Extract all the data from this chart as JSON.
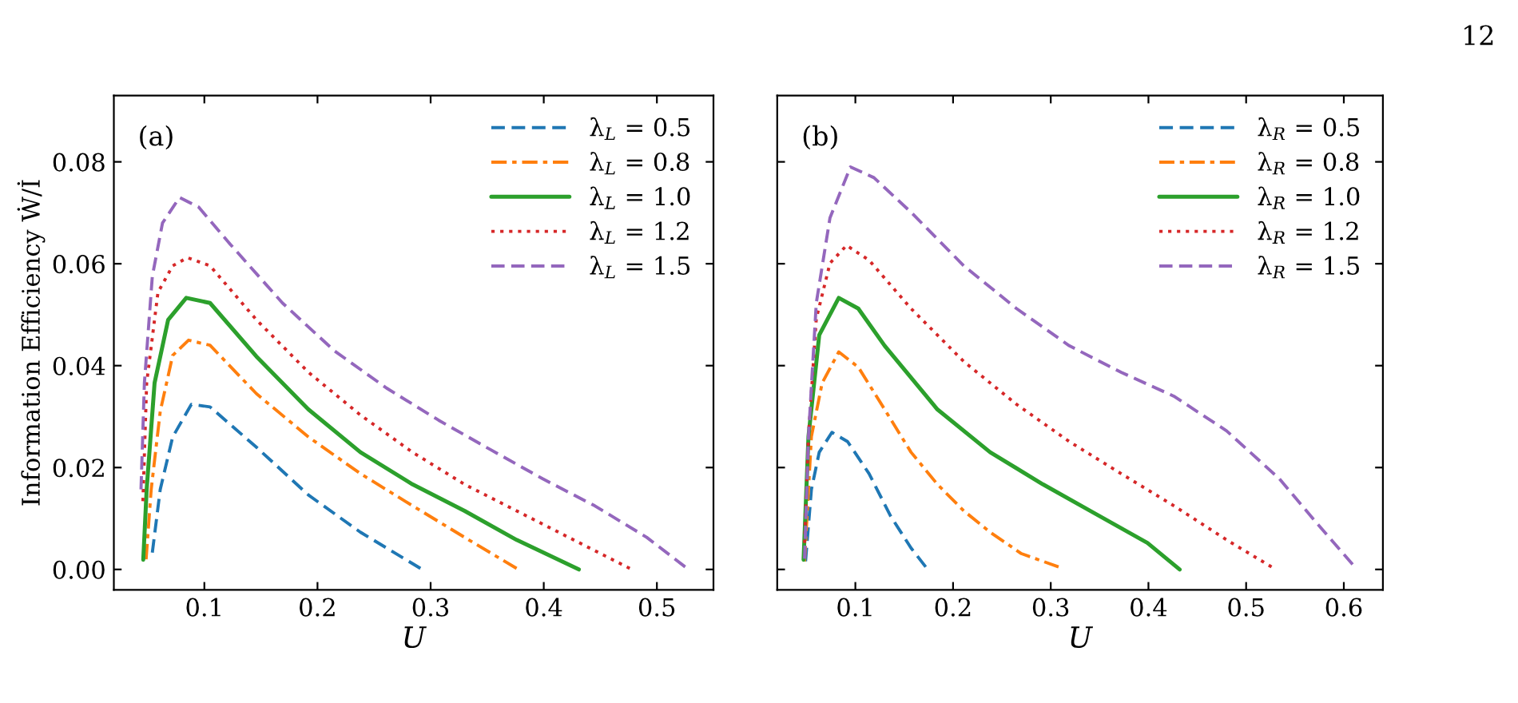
{
  "chart_data": [
    {
      "type": "line",
      "annotations": [
        "(a)",
        "12"
      ],
      "xlabel": "U",
      "ylabel": "Information Efficiency Ẇ/İ",
      "xlim": [
        0.02,
        0.55
      ],
      "ylim": [
        -0.004,
        0.093
      ],
      "xticks": [
        0.1,
        0.2,
        0.3,
        0.4,
        0.5
      ],
      "yticks": [
        {
          "value": 0,
          "label": "0.00"
        },
        {
          "value": 0.02,
          "label": "0.02"
        },
        {
          "value": 0.04,
          "label": "0.04"
        },
        {
          "value": 0.06,
          "label": "0.06"
        },
        {
          "value": 0.08,
          "label": "0.08"
        }
      ],
      "legend": "top right",
      "grid": false,
      "series": [
        {
          "name": "λ$_{L}$ = 0.5",
          "color": "#1f77b4",
          "line_style": "dashed",
          "x": [
            0.054,
            0.061,
            0.072,
            0.0885,
            0.105,
            0.146,
            0.192,
            0.238,
            0.291
          ],
          "values": [
            0.0033,
            0.0157,
            0.026,
            0.0324,
            0.0319,
            0.024,
            0.0146,
            0.0073,
            0.0002
          ]
        },
        {
          "name": "λ$_{L}$ = 0.8",
          "color": "#ff7f0e",
          "line_style": "dashdot",
          "x": [
            0.0485,
            0.053,
            0.061,
            0.072,
            0.086,
            0.105,
            0.146,
            0.192,
            0.238,
            0.284,
            0.33,
            0.376
          ],
          "values": [
            0.002,
            0.0157,
            0.031,
            0.042,
            0.045,
            0.044,
            0.0345,
            0.026,
            0.0188,
            0.0125,
            0.0063,
            0.0002
          ]
        },
        {
          "name": "λ$_{L}$ = 1.0",
          "color": "#2ca02c",
          "line_style": "solid",
          "x": [
            0.046,
            0.049,
            0.056,
            0.068,
            0.084,
            0.105,
            0.146,
            0.192,
            0.238,
            0.284,
            0.33,
            0.376,
            0.431
          ],
          "values": [
            0.0019,
            0.0157,
            0.0366,
            0.049,
            0.0533,
            0.0523,
            0.0418,
            0.0314,
            0.023,
            0.0167,
            0.0115,
            0.0058,
            0.0
          ]
        },
        {
          "name": "λ$_{L}$ = 1.2",
          "color": "#d62728",
          "line_style": "dotted",
          "x": [
            0.0457,
            0.049,
            0.059,
            0.072,
            0.085,
            0.105,
            0.146,
            0.192,
            0.238,
            0.284,
            0.33,
            0.376,
            0.422,
            0.476
          ],
          "values": [
            0.0134,
            0.0366,
            0.0544,
            0.0596,
            0.0612,
            0.0596,
            0.049,
            0.0387,
            0.0303,
            0.023,
            0.0167,
            0.0115,
            0.0063,
            0.0002
          ]
        },
        {
          "name": "λ$_{L}$ = 1.5",
          "color": "#9467bd",
          "line_style": "dashed",
          "x": [
            0.044,
            0.047,
            0.054,
            0.063,
            0.078,
            0.095,
            0.123,
            0.169,
            0.215,
            0.261,
            0.307,
            0.353,
            0.399,
            0.445,
            0.491,
            0.525
          ],
          "values": [
            0.0157,
            0.0366,
            0.0575,
            0.068,
            0.073,
            0.0711,
            0.0638,
            0.0523,
            0.0429,
            0.0356,
            0.0293,
            0.0235,
            0.0178,
            0.0125,
            0.0063,
            0.0005
          ]
        }
      ]
    },
    {
      "type": "line",
      "annotations": [
        "(b)"
      ],
      "xlabel": "U",
      "xlim": [
        0.02,
        0.64
      ],
      "ylim": [
        -0.004,
        0.093
      ],
      "xticks": [
        0.1,
        0.2,
        0.3,
        0.4,
        0.5,
        0.6
      ],
      "yticks": [
        {
          "value": 0,
          "label": null
        },
        {
          "value": 0.02,
          "label": null
        },
        {
          "value": 0.04,
          "label": null
        },
        {
          "value": 0.06,
          "label": null
        },
        {
          "value": 0.08,
          "label": null
        }
      ],
      "tick_labels": "x",
      "legend": "top right",
      "grid": false,
      "series": [
        {
          "name": "λ$_{R}$ = 0.5",
          "color": "#1f77b4",
          "line_style": "dashed",
          "x": [
            0.049,
            0.055,
            0.063,
            0.076,
            0.092,
            0.114,
            0.136,
            0.157,
            0.172
          ],
          "values": [
            0.0016,
            0.0157,
            0.023,
            0.0269,
            0.0251,
            0.0188,
            0.0105,
            0.0042,
            0.0005
          ]
        },
        {
          "name": "λ$_{R}$ = 0.8",
          "color": "#ff7f0e",
          "line_style": "dashdot",
          "x": [
            0.048,
            0.055,
            0.066,
            0.083,
            0.103,
            0.13,
            0.157,
            0.184,
            0.211,
            0.238,
            0.27,
            0.308
          ],
          "values": [
            0.0016,
            0.0261,
            0.0366,
            0.0427,
            0.0397,
            0.0314,
            0.023,
            0.0167,
            0.0115,
            0.0073,
            0.0031,
            0.0005
          ]
        },
        {
          "name": "λ$_{R}$ = 1.0",
          "color": "#2ca02c",
          "line_style": "solid",
          "x": [
            0.047,
            0.052,
            0.063,
            0.083,
            0.103,
            0.13,
            0.184,
            0.238,
            0.292,
            0.345,
            0.399,
            0.432
          ],
          "values": [
            0.0019,
            0.0261,
            0.046,
            0.0533,
            0.0512,
            0.0439,
            0.0314,
            0.023,
            0.0167,
            0.011,
            0.0052,
            0.0
          ]
        },
        {
          "name": "λ$_{R}$ = 1.2",
          "color": "#d62728",
          "line_style": "dotted",
          "x": [
            0.048,
            0.052,
            0.06,
            0.074,
            0.091,
            0.114,
            0.157,
            0.211,
            0.265,
            0.319,
            0.372,
            0.426,
            0.48,
            0.526
          ],
          "values": [
            0.0052,
            0.0261,
            0.0492,
            0.0601,
            0.0636,
            0.0607,
            0.0512,
            0.0408,
            0.0324,
            0.0251,
            0.0188,
            0.0125,
            0.0058,
            0.0005
          ]
        },
        {
          "name": "λ$_{R}$ = 1.5",
          "color": "#9467bd",
          "line_style": "dashed",
          "x": [
            0.048,
            0.052,
            0.06,
            0.074,
            0.095,
            0.119,
            0.157,
            0.211,
            0.265,
            0.319,
            0.372,
            0.426,
            0.48,
            0.534,
            0.571,
            0.609
          ],
          "values": [
            0.0021,
            0.0261,
            0.0523,
            0.069,
            0.079,
            0.0769,
            0.0701,
            0.0596,
            0.0512,
            0.0439,
            0.0387,
            0.034,
            0.0272,
            0.0178,
            0.0094,
            0.001
          ]
        }
      ]
    }
  ]
}
